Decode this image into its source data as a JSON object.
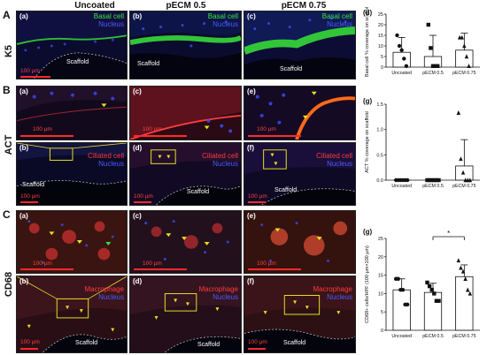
{
  "columns": {
    "uncoated": "Uncoated",
    "pecm05": "pECM 0.5",
    "pecm075": "pECM 0.75"
  },
  "sections": {
    "a": "A",
    "b": "B",
    "c": "C"
  },
  "rows": {
    "k5": "K5",
    "act": "ACT",
    "cd68": "CD68"
  },
  "panels": {
    "a1": {
      "tag": "(a)",
      "legend1": "Basal cell",
      "legend2": "Nucleus",
      "scale": "100 µm",
      "scaffold": "Scaffold"
    },
    "a2": {
      "tag": "(b)",
      "legend1": "Basal cell",
      "legend2": "Nucleus",
      "scaffold": "Scaffold"
    },
    "a3": {
      "tag": "(c)",
      "legend1": "Basal cell",
      "legend2": "Nucleus",
      "scaffold": "Scaffold"
    },
    "b1": {
      "tag": "(a)",
      "scale": "100 µm"
    },
    "b2": {
      "tag": "(c)",
      "scale": "100 µm"
    },
    "b3": {
      "tag": "(e)",
      "scale": "100 µm"
    },
    "b4": {
      "tag": "(b)",
      "legend1": "Ciliated cell",
      "legend2": "Nucleus",
      "scale": "100 µm",
      "scaffold": "Scaffold"
    },
    "b5": {
      "tag": "(d)",
      "legend1": "Ciliated cell",
      "legend2": "Nucleus",
      "scale": "100 µm",
      "scaffold": "Scaffold"
    },
    "b6": {
      "tag": "(f)",
      "legend1": "Ciliated cell",
      "legend2": "Nucleus",
      "scale": "100 µm",
      "scaffold": "Scaffold"
    },
    "c1": {
      "tag": "(a)",
      "scale": "100 µm"
    },
    "c2": {
      "tag": "(c)",
      "scale": "100 µm"
    },
    "c3": {
      "tag": "(e)",
      "scale": "100 µm"
    },
    "c4": {
      "tag": "(b)",
      "legend1": "Macrophage",
      "legend2": "Nucleus",
      "scale": "100 µm",
      "scaffold": "Scaffold"
    },
    "c5": {
      "tag": "(d)",
      "legend1": "Macrophage",
      "legend2": "Nucleus",
      "scaffold": "Scaffold"
    },
    "c6": {
      "tag": "(f)",
      "legend1": "Macrophage",
      "legend2": "Nucleus",
      "scale": "100 µm",
      "scaffold": "Scaffold"
    }
  },
  "colors": {
    "green": "#39e639",
    "blue": "#4b5bff",
    "red": "#ff3b3b",
    "yellow": "#e8e022",
    "bar_outline": "#111111"
  },
  "chart_data": [
    {
      "type": "bar",
      "tag": "(d)",
      "categories": [
        "Uncoated",
        "pECM 0.5",
        "pECM 0.75"
      ],
      "values": [
        7,
        5,
        8
      ],
      "errors": [
        7,
        10,
        8
      ],
      "points": [
        [
          15,
          10,
          8,
          4,
          0.5
        ],
        [
          20,
          9,
          0.5,
          0.5,
          0.5
        ],
        [
          14,
          14,
          10,
          5,
          0.5
        ]
      ],
      "markers": [
        "circle",
        "square",
        "triangle"
      ],
      "ylabel": "Basal cell % coverage on scaffold",
      "ylim": [
        0,
        25
      ],
      "yticks": [
        "0",
        "5",
        "10",
        "15",
        "20",
        "25"
      ]
    },
    {
      "type": "bar",
      "tag": "(g)",
      "categories": [
        "Uncoated",
        "pECM 0.5",
        "pECM 0.75"
      ],
      "values": [
        0,
        0,
        0.28
      ],
      "errors": [
        0,
        0,
        0.52
      ],
      "points": [
        [
          0,
          0,
          0,
          0,
          0,
          0
        ],
        [
          0,
          0,
          0,
          0,
          0,
          0
        ],
        [
          1.33,
          0.42,
          0.15,
          0,
          0,
          0
        ]
      ],
      "markers": [
        "circle",
        "square",
        "triangle"
      ],
      "ylabel": "ACT % coverage on scaffold",
      "ylim": [
        0,
        1.5
      ],
      "yticks": [
        "0.0",
        "0.5",
        "1.0",
        "1.5"
      ]
    },
    {
      "type": "bar",
      "tag": "(g)",
      "categories": [
        "Uncoated",
        "pECM 0.5",
        "pECM 0.75"
      ],
      "values": [
        11,
        10.3,
        14.6
      ],
      "errors": [
        3,
        2.5,
        3.2
      ],
      "points": [
        [
          14,
          14,
          11,
          11,
          7,
          7
        ],
        [
          13,
          12,
          11,
          10,
          8,
          8
        ],
        [
          19,
          17,
          16,
          14,
          11,
          10
        ]
      ],
      "markers": [
        "circle",
        "square",
        "triangle"
      ],
      "ylabel": "CD68+ cells/HPF (100 µm×100 µm)",
      "ylim": [
        0,
        25
      ],
      "yticks": [
        "0",
        "5",
        "10",
        "15",
        "20",
        "25"
      ],
      "significance": "*"
    }
  ]
}
